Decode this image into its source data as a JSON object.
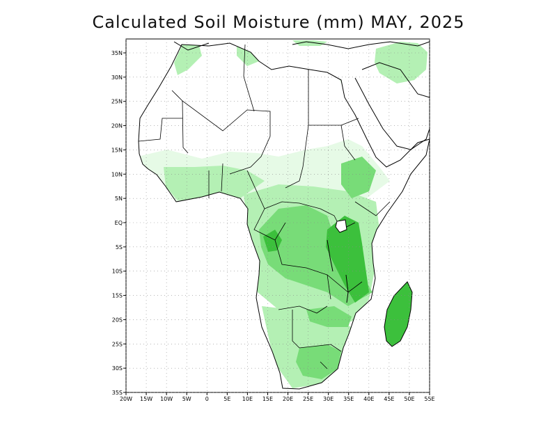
{
  "title": "Calculated Soil Moisture (mm) MAY, 2025",
  "map": {
    "lon_range": [
      -20,
      55
    ],
    "lat_range": [
      -35,
      38
    ],
    "lat_ticks": [
      {
        "value": 35,
        "label": "35N"
      },
      {
        "value": 30,
        "label": "30N"
      },
      {
        "value": 25,
        "label": "25N"
      },
      {
        "value": 20,
        "label": "20N"
      },
      {
        "value": 15,
        "label": "15N"
      },
      {
        "value": 10,
        "label": "10N"
      },
      {
        "value": 5,
        "label": "5N"
      },
      {
        "value": 0,
        "label": "EQ"
      },
      {
        "value": -5,
        "label": "5S"
      },
      {
        "value": -10,
        "label": "10S"
      },
      {
        "value": -15,
        "label": "15S"
      },
      {
        "value": -20,
        "label": "20S"
      },
      {
        "value": -25,
        "label": "25S"
      },
      {
        "value": -30,
        "label": "30S"
      },
      {
        "value": -35,
        "label": "35S"
      }
    ],
    "lon_ticks": [
      {
        "value": -20,
        "label": "20W"
      },
      {
        "value": -15,
        "label": "15W"
      },
      {
        "value": -10,
        "label": "10W"
      },
      {
        "value": -5,
        "label": "5W"
      },
      {
        "value": 0,
        "label": "0"
      },
      {
        "value": 5,
        "label": "5E"
      },
      {
        "value": 10,
        "label": "10E"
      },
      {
        "value": 15,
        "label": "15E"
      },
      {
        "value": 20,
        "label": "20E"
      },
      {
        "value": 25,
        "label": "25E"
      },
      {
        "value": 30,
        "label": "30E"
      },
      {
        "value": 35,
        "label": "35E"
      },
      {
        "value": 40,
        "label": "40E"
      },
      {
        "value": 45,
        "label": "45E"
      },
      {
        "value": 50,
        "label": "50E"
      },
      {
        "value": 55,
        "label": "55E"
      }
    ],
    "grid": true,
    "colors": {
      "lightest_green": "#e6fae6",
      "light_green": "#b4f0b4",
      "medium_green": "#78dc78",
      "dark_green": "#3cc03c",
      "darkest_green": "#14a014",
      "coastline": "#000000",
      "grid": "#888888"
    }
  }
}
